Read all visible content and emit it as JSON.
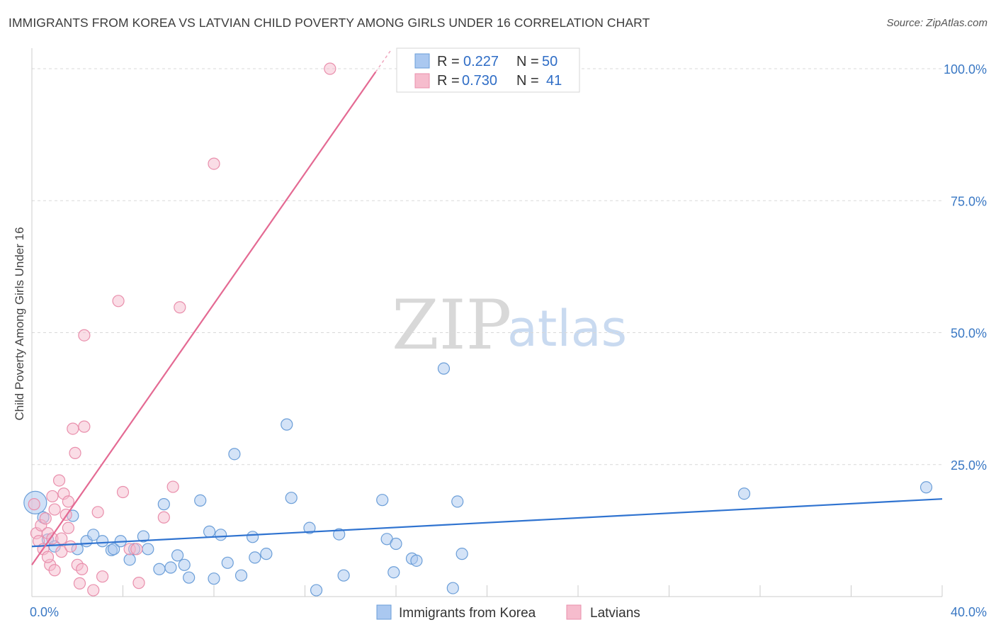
{
  "title": "IMMIGRANTS FROM KOREA VS LATVIAN CHILD POVERTY AMONG GIRLS UNDER 16 CORRELATION CHART",
  "source": "Source: ZipAtlas.com",
  "watermark": {
    "zip": "ZIP",
    "atlas": "atlas"
  },
  "colors": {
    "blue_fill": "#aac8f0",
    "blue_stroke": "#6b9ed8",
    "blue_line": "#2f73d0",
    "pink_fill": "#f6bccd",
    "pink_stroke": "#e98fac",
    "pink_line": "#e46a93",
    "grid": "#d9d9d9",
    "axis_text": "#3a78c4"
  },
  "legend": {
    "rows": [
      {
        "r_label": "R =",
        "r_value": "0.227",
        "n_label": "N =",
        "n_value": "50",
        "color": "blue"
      },
      {
        "r_label": "R =",
        "r_value": "0.730",
        "n_label": "N =",
        "n_value": "41",
        "color": "pink"
      }
    ]
  },
  "bottom_legend": [
    {
      "label": "Immigrants from Korea",
      "color": "blue"
    },
    {
      "label": "Latvians",
      "color": "pink"
    }
  ],
  "chart_data": {
    "type": "scatter",
    "title": "IMMIGRANTS FROM KOREA VS LATVIAN CHILD POVERTY AMONG GIRLS UNDER 16 CORRELATION CHART",
    "xlabel": "",
    "ylabel": "Child Poverty Among Girls Under 16",
    "xlim": [
      0,
      40
    ],
    "ylim": [
      0,
      100
    ],
    "x_tick_labels": [
      {
        "value": 0,
        "label": "0.0%"
      },
      {
        "value": 40,
        "label": "40.0%"
      }
    ],
    "y_tick_labels": [
      {
        "value": 25,
        "label": "25.0%"
      },
      {
        "value": 50,
        "label": "50.0%"
      },
      {
        "value": 75,
        "label": "75.0%"
      },
      {
        "value": 100,
        "label": "100.0%"
      }
    ],
    "series": [
      {
        "name": "Immigrants from Korea",
        "color": "blue",
        "r": 0.227,
        "n": 50,
        "trend": {
          "x": [
            0,
            40
          ],
          "y": [
            9.5,
            18.5
          ]
        },
        "points": [
          [
            0.15,
            17.8
          ],
          [
            0.5,
            15.0
          ],
          [
            0.7,
            10.8
          ],
          [
            1.0,
            9.5
          ],
          [
            1.8,
            15.3
          ],
          [
            2.0,
            9.0
          ],
          [
            2.4,
            10.5
          ],
          [
            2.7,
            11.7
          ],
          [
            3.1,
            10.5
          ],
          [
            3.5,
            8.8
          ],
          [
            3.6,
            9.0
          ],
          [
            3.9,
            10.5
          ],
          [
            4.3,
            7.0
          ],
          [
            4.5,
            9.0
          ],
          [
            4.9,
            11.4
          ],
          [
            5.1,
            9.0
          ],
          [
            5.6,
            5.2
          ],
          [
            5.8,
            17.5
          ],
          [
            6.1,
            5.5
          ],
          [
            6.4,
            7.8
          ],
          [
            6.7,
            6.0
          ],
          [
            6.9,
            3.6
          ],
          [
            7.4,
            18.2
          ],
          [
            7.8,
            12.3
          ],
          [
            8.0,
            3.4
          ],
          [
            8.3,
            11.7
          ],
          [
            8.6,
            6.4
          ],
          [
            8.9,
            27.0
          ],
          [
            9.2,
            4.0
          ],
          [
            9.7,
            11.3
          ],
          [
            9.8,
            7.4
          ],
          [
            10.3,
            8.1
          ],
          [
            11.2,
            32.6
          ],
          [
            11.4,
            18.7
          ],
          [
            12.2,
            13.0
          ],
          [
            12.5,
            1.2
          ],
          [
            13.5,
            11.8
          ],
          [
            13.7,
            4.0
          ],
          [
            15.4,
            18.3
          ],
          [
            15.6,
            10.9
          ],
          [
            15.9,
            4.6
          ],
          [
            16.7,
            7.2
          ],
          [
            16.9,
            6.8
          ],
          [
            18.1,
            43.2
          ],
          [
            18.5,
            1.6
          ],
          [
            18.7,
            18.0
          ],
          [
            18.9,
            8.1
          ],
          [
            31.3,
            19.5
          ],
          [
            39.3,
            20.7
          ],
          [
            16.0,
            10.0
          ]
        ]
      },
      {
        "name": "Latvians",
        "color": "pink",
        "r": 0.73,
        "n": 41,
        "trend": {
          "x": [
            0,
            15.2
          ],
          "y": [
            6.0,
            101.0
          ]
        },
        "points": [
          [
            0.1,
            17.5
          ],
          [
            0.2,
            12.0
          ],
          [
            0.3,
            10.5
          ],
          [
            0.4,
            13.5
          ],
          [
            0.5,
            9.0
          ],
          [
            0.6,
            14.8
          ],
          [
            0.7,
            12.0
          ],
          [
            0.8,
            6.0
          ],
          [
            0.9,
            11.0
          ],
          [
            0.9,
            19.0
          ],
          [
            1.0,
            5.0
          ],
          [
            1.0,
            16.5
          ],
          [
            1.2,
            22.0
          ],
          [
            1.3,
            8.5
          ],
          [
            1.4,
            19.5
          ],
          [
            1.5,
            15.5
          ],
          [
            1.6,
            18.0
          ],
          [
            1.7,
            9.5
          ],
          [
            1.8,
            31.8
          ],
          [
            1.9,
            27.2
          ],
          [
            2.0,
            6.0
          ],
          [
            2.1,
            2.5
          ],
          [
            2.2,
            5.2
          ],
          [
            2.3,
            32.2
          ],
          [
            2.7,
            1.2
          ],
          [
            2.9,
            16.0
          ],
          [
            3.1,
            3.8
          ],
          [
            2.3,
            49.5
          ],
          [
            3.8,
            56.0
          ],
          [
            4.0,
            19.8
          ],
          [
            4.3,
            9.0
          ],
          [
            4.6,
            9.0
          ],
          [
            4.7,
            2.6
          ],
          [
            5.8,
            15.0
          ],
          [
            6.2,
            20.8
          ],
          [
            6.5,
            54.8
          ],
          [
            8.0,
            82.0
          ],
          [
            13.1,
            100.0
          ],
          [
            1.3,
            11.0
          ],
          [
            0.7,
            7.5
          ],
          [
            1.6,
            13.0
          ]
        ]
      }
    ]
  }
}
